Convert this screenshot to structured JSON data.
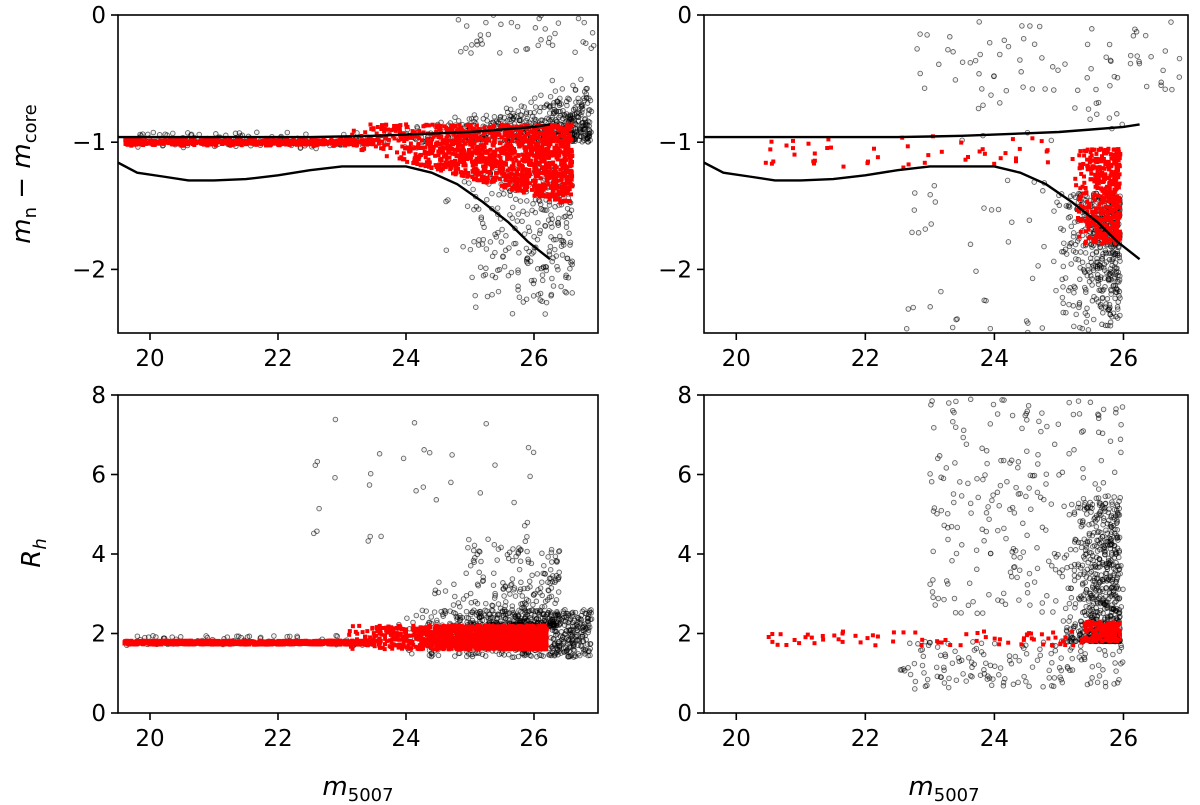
{
  "figure": {
    "rows": 2,
    "cols": 2,
    "point_colors": {
      "fainter_sample": "#000000",
      "matched_sample": "#ff0000"
    }
  },
  "axis_text": {
    "top_ylabel_main": "m",
    "top_ylabel_sub1": "n",
    "top_ylabel_minus": " − ",
    "top_ylabel_main2": "m",
    "top_ylabel_sub2": "core",
    "bottom_ylabel_main": "R",
    "bottom_ylabel_sub": "h",
    "xlabel_main": "m",
    "xlabel_sub": "5007"
  },
  "chart_data": [
    {
      "id": "top-left",
      "type": "scatter",
      "xlabel": "m_5007",
      "ylabel": "m_n − m_core",
      "xlim": [
        19.5,
        27.0
      ],
      "ylim": [
        -2.5,
        0
      ],
      "xticks": [
        20,
        22,
        24,
        26
      ],
      "yticks": [
        -2,
        -1,
        0
      ],
      "xtick_labels": [
        "20",
        "22",
        "24",
        "26"
      ],
      "ytick_labels": [
        "−2",
        "−1",
        "0"
      ],
      "show_xticklabels": true,
      "show_yticklabels": true,
      "curves": [
        {
          "name": "upper-limit",
          "x": [
            19.5,
            20.5,
            21.5,
            22.5,
            23.0,
            23.5,
            24.0,
            24.5,
            25.0,
            25.5,
            26.0,
            26.25
          ],
          "y": [
            -0.96,
            -0.96,
            -0.96,
            -0.96,
            -0.955,
            -0.95,
            -0.94,
            -0.93,
            -0.92,
            -0.9,
            -0.88,
            -0.86
          ]
        },
        {
          "name": "lower-limit",
          "x": [
            19.5,
            19.8,
            20.2,
            20.6,
            21.0,
            21.5,
            22.0,
            22.5,
            23.0,
            23.5,
            24.0,
            24.4,
            24.8,
            25.2,
            25.6,
            25.9,
            26.25
          ],
          "y": [
            -1.16,
            -1.24,
            -1.27,
            -1.3,
            -1.3,
            -1.29,
            -1.26,
            -1.22,
            -1.19,
            -1.19,
            -1.19,
            -1.24,
            -1.33,
            -1.47,
            -1.63,
            -1.78,
            -1.92
          ]
        }
      ],
      "series": [
        {
          "name": "black",
          "color": "#000000",
          "count": 2300,
          "clusters": [
            {
              "n": 500,
              "x": [
                23.8,
                26.9
              ],
              "y": [
                -1.0,
                -0.25
              ],
              "y_spread": 0.35,
              "skew": "faint",
              "top_follow": true
            },
            {
              "n": 300,
              "x": [
                24.5,
                26.6
              ],
              "y": [
                -2.4,
                -1.2
              ],
              "skew": "faint",
              "ydist": "upper"
            },
            {
              "n": 120,
              "x": [
                19.6,
                24.5
              ],
              "y": [
                -1.05,
                -0.92
              ]
            },
            {
              "n": 40,
              "x": [
                24.8,
                26.95
              ],
              "y": [
                -0.3,
                0.0
              ]
            }
          ]
        },
        {
          "name": "red",
          "color": "#ff0000",
          "count": 2000,
          "clusters": [
            {
              "n": 700,
              "x": [
                19.6,
                23.5
              ],
              "y": [
                -1.06,
                -0.94
              ],
              "y_spread": 0.04
            },
            {
              "n": 1300,
              "x": [
                23.0,
                26.6
              ],
              "y": [
                -1.5,
                -0.86
              ],
              "skew": "faint",
              "widen": true
            }
          ]
        }
      ]
    },
    {
      "id": "top-right",
      "type": "scatter",
      "xlabel": "m_5007",
      "ylabel": "m_n − m_core",
      "xlim": [
        19.5,
        27.0
      ],
      "ylim": [
        -2.5,
        0
      ],
      "xticks": [
        20,
        22,
        24,
        26
      ],
      "yticks": [
        -2,
        -1,
        0
      ],
      "xtick_labels": [
        "20",
        "22",
        "24",
        "26"
      ],
      "ytick_labels": [
        "−2",
        "−1",
        "0"
      ],
      "show_xticklabels": true,
      "show_yticklabels": true,
      "curves": [
        {
          "name": "upper-limit",
          "x": [
            19.5,
            20.5,
            21.5,
            22.5,
            23.0,
            23.5,
            24.0,
            24.5,
            25.0,
            25.5,
            26.0,
            26.25
          ],
          "y": [
            -0.96,
            -0.96,
            -0.96,
            -0.96,
            -0.955,
            -0.95,
            -0.94,
            -0.93,
            -0.92,
            -0.9,
            -0.88,
            -0.86
          ]
        },
        {
          "name": "lower-limit",
          "x": [
            19.5,
            19.8,
            20.2,
            20.6,
            21.0,
            21.5,
            22.0,
            22.5,
            23.0,
            23.5,
            24.0,
            24.4,
            24.8,
            25.2,
            25.6,
            25.9,
            26.25
          ],
          "y": [
            -1.16,
            -1.24,
            -1.27,
            -1.3,
            -1.3,
            -1.29,
            -1.26,
            -1.22,
            -1.19,
            -1.19,
            -1.19,
            -1.24,
            -1.33,
            -1.47,
            -1.63,
            -1.78,
            -1.92
          ]
        }
      ],
      "series": [
        {
          "name": "black",
          "color": "#000000",
          "count": 620,
          "clusters": [
            {
              "n": 450,
              "x": [
                24.9,
                25.95
              ],
              "y": [
                -2.5,
                -1.4
              ],
              "skew": "faint",
              "ydist": "upper"
            },
            {
              "n": 60,
              "x": [
                22.8,
                26.9
              ],
              "y": [
                -0.6,
                -0.05
              ]
            },
            {
              "n": 40,
              "x": [
                22.5,
                25.0
              ],
              "y": [
                -2.5,
                -1.3
              ]
            },
            {
              "n": 30,
              "x": [
                23.5,
                26.0
              ],
              "y": [
                -1.0,
                -0.3
              ]
            }
          ]
        },
        {
          "name": "red",
          "color": "#ff0000",
          "count": 520,
          "clusters": [
            {
              "n": 430,
              "x": [
                25.2,
                25.95
              ],
              "y": [
                -1.8,
                -1.05
              ],
              "skew": "faint"
            },
            {
              "n": 50,
              "x": [
                20.4,
                25.4
              ],
              "y": [
                -1.2,
                -0.95
              ]
            }
          ]
        }
      ]
    },
    {
      "id": "bottom-left",
      "type": "scatter",
      "xlabel": "m_5007",
      "ylabel": "R_h",
      "xlim": [
        19.5,
        27.0
      ],
      "ylim": [
        0,
        8
      ],
      "xticks": [
        20,
        22,
        24,
        26
      ],
      "yticks": [
        0,
        2,
        4,
        6,
        8
      ],
      "xtick_labels": [
        "20",
        "22",
        "24",
        "26"
      ],
      "ytick_labels": [
        "0",
        "2",
        "4",
        "6",
        "8"
      ],
      "show_xticklabels": true,
      "show_yticklabels": true,
      "series": [
        {
          "name": "black",
          "color": "#000000",
          "count": 1400,
          "clusters": [
            {
              "n": 600,
              "x": [
                23.5,
                26.9
              ],
              "y": [
                1.4,
                2.6
              ],
              "skew": "faint"
            },
            {
              "n": 300,
              "x": [
                24.2,
                26.4
              ],
              "y": [
                2.2,
                4.2
              ],
              "skew": "faint",
              "ydist": "lower"
            },
            {
              "n": 40,
              "x": [
                22.5,
                26.0
              ],
              "y": [
                4.0,
                7.7
              ]
            },
            {
              "n": 80,
              "x": [
                19.6,
                23.5
              ],
              "y": [
                1.7,
                1.95
              ]
            }
          ]
        },
        {
          "name": "red",
          "color": "#ff0000",
          "count": 2400,
          "clusters": [
            {
              "n": 1000,
              "x": [
                19.6,
                23.5
              ],
              "y": [
                1.72,
                1.82
              ]
            },
            {
              "n": 1400,
              "x": [
                23.0,
                26.2
              ],
              "y": [
                1.6,
                2.2
              ],
              "skew": "faint"
            }
          ]
        }
      ]
    },
    {
      "id": "bottom-right",
      "type": "scatter",
      "xlabel": "m_5007",
      "ylabel": "R_h",
      "xlim": [
        19.5,
        27.0
      ],
      "ylim": [
        0,
        8
      ],
      "xticks": [
        20,
        22,
        24,
        26
      ],
      "yticks": [
        0,
        2,
        4,
        6,
        8
      ],
      "xtick_labels": [
        "20",
        "22",
        "24",
        "26"
      ],
      "ytick_labels": [
        "0",
        "2",
        "4",
        "6",
        "8"
      ],
      "show_xticklabels": true,
      "show_yticklabels": true,
      "series": [
        {
          "name": "black",
          "color": "#000000",
          "count": 1100,
          "clusters": [
            {
              "n": 650,
              "x": [
                25.0,
                25.95
              ],
              "y": [
                1.8,
                5.5
              ],
              "skew": "faint",
              "ydist": "lower"
            },
            {
              "n": 250,
              "x": [
                23.0,
                26.0
              ],
              "y": [
                2.5,
                7.9
              ]
            },
            {
              "n": 150,
              "x": [
                22.5,
                26.0
              ],
              "y": [
                0.6,
                1.8
              ]
            }
          ]
        },
        {
          "name": "red",
          "color": "#ff0000",
          "count": 230,
          "clusters": [
            {
              "n": 160,
              "x": [
                25.4,
                25.95
              ],
              "y": [
                1.8,
                2.3
              ]
            },
            {
              "n": 70,
              "x": [
                20.5,
                25.4
              ],
              "y": [
                1.7,
                2.05
              ]
            }
          ]
        }
      ]
    }
  ]
}
